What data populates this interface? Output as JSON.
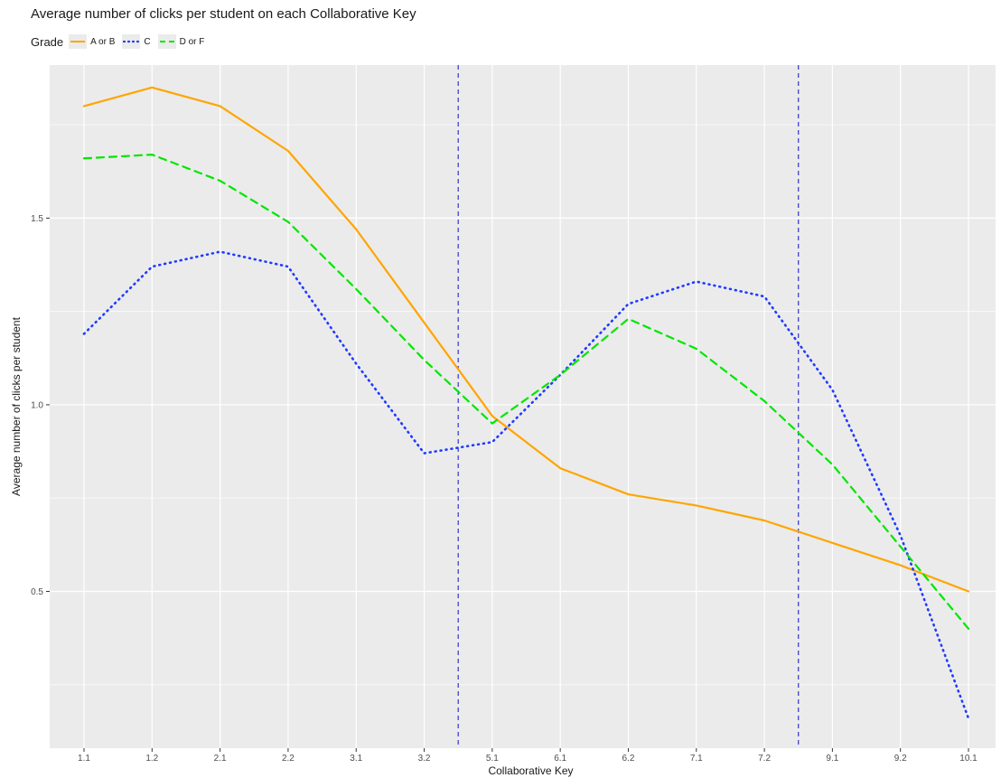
{
  "chart_data": {
    "type": "line",
    "title": "Average number of clicks per student on each Collaborative Key",
    "xlabel": "Collaborative Key",
    "ylabel": "Average number of clicks per student",
    "categories": [
      "1.1",
      "1.2",
      "2.1",
      "2.2",
      "3.1",
      "3.2",
      "5.1",
      "6.1",
      "6.2",
      "7.1",
      "7.2",
      "9.1",
      "9.2",
      "10.1"
    ],
    "y_ticks": [
      0.5,
      1.0,
      1.5
    ],
    "y_tick_labels": [
      "0.5",
      "1.0",
      "1.5"
    ],
    "ylim": [
      0.08,
      1.91
    ],
    "grid": true,
    "legend": {
      "title": "Grade",
      "position": "top-left"
    },
    "series": [
      {
        "name": "A or B",
        "color": "#FFA500",
        "dash": "solid",
        "values": [
          1.8,
          1.85,
          1.8,
          1.68,
          1.47,
          1.22,
          0.97,
          0.83,
          0.76,
          0.73,
          0.69,
          0.63,
          0.57,
          0.5
        ]
      },
      {
        "name": "C",
        "color": "#1F3BFF",
        "dash": "dotted",
        "values": [
          1.19,
          1.37,
          1.41,
          1.37,
          1.11,
          0.87,
          0.9,
          1.08,
          1.27,
          1.33,
          1.29,
          1.04,
          0.65,
          0.16
        ]
      },
      {
        "name": "D or F",
        "color": "#00E600",
        "dash": "dashed",
        "values": [
          1.66,
          1.67,
          1.6,
          1.49,
          1.31,
          1.12,
          0.95,
          1.08,
          1.23,
          1.15,
          1.01,
          0.84,
          0.62,
          0.4
        ]
      }
    ],
    "vlines": [
      {
        "x": 6.5,
        "color": "#3333CC",
        "dash": "dashed"
      },
      {
        "x": 11.5,
        "color": "#3333CC",
        "dash": "dashed"
      }
    ]
  }
}
